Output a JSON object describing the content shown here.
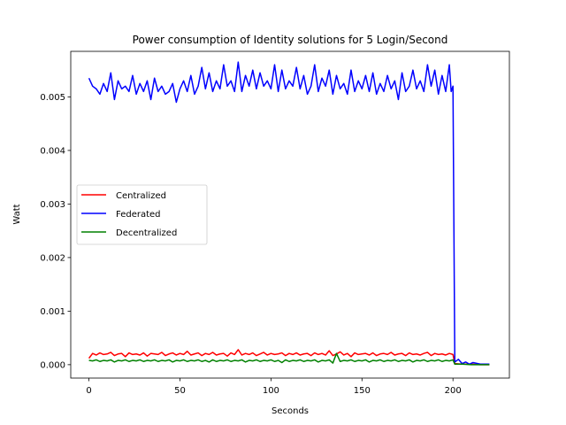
{
  "chart_data": {
    "type": "line",
    "title": "Power consumption of Identity solutions for 5 Login/Second",
    "xlabel": "Seconds",
    "ylabel": "Watt",
    "xlim": [
      -10,
      231
    ],
    "ylim": [
      -0.00025,
      0.00585
    ],
    "xticks": [
      0,
      50,
      100,
      150,
      200
    ],
    "xtick_labels": [
      "0",
      "50",
      "100",
      "150",
      "200"
    ],
    "yticks": [
      0,
      0.001,
      0.002,
      0.003,
      0.004,
      0.005
    ],
    "ytick_labels": [
      "0.000",
      "0.001",
      "0.002",
      "0.003",
      "0.004",
      "0.005"
    ],
    "grid": false,
    "legend_position": "center-left",
    "series": [
      {
        "name": "Centralized",
        "color": "#ff0000",
        "x": [
          0,
          2,
          4,
          6,
          8,
          10,
          12,
          14,
          16,
          18,
          20,
          22,
          24,
          26,
          28,
          30,
          32,
          34,
          36,
          38,
          40,
          42,
          44,
          46,
          48,
          50,
          52,
          54,
          56,
          58,
          60,
          62,
          64,
          66,
          68,
          70,
          72,
          74,
          76,
          78,
          80,
          82,
          84,
          86,
          88,
          90,
          92,
          94,
          96,
          98,
          100,
          102,
          104,
          106,
          108,
          110,
          112,
          114,
          116,
          118,
          120,
          122,
          124,
          126,
          128,
          130,
          132,
          134,
          136,
          138,
          140,
          142,
          144,
          146,
          148,
          150,
          152,
          154,
          156,
          158,
          160,
          162,
          164,
          166,
          168,
          170,
          172,
          174,
          176,
          178,
          180,
          182,
          184,
          186,
          188,
          190,
          192,
          194,
          196,
          198,
          200,
          201,
          205,
          210,
          215,
          220
        ],
        "y": [
          0.00012,
          0.00021,
          0.00018,
          0.00022,
          0.00019,
          0.0002,
          0.00023,
          0.00017,
          0.0002,
          0.00021,
          0.00015,
          0.00022,
          0.00019,
          0.0002,
          0.00018,
          0.00022,
          0.00016,
          0.00021,
          0.0002,
          0.00019,
          0.00023,
          0.00017,
          0.0002,
          0.00022,
          0.00018,
          0.00021,
          0.00019,
          0.00025,
          0.00018,
          0.0002,
          0.00022,
          0.00017,
          0.00021,
          0.00019,
          0.00023,
          0.00018,
          0.0002,
          0.00021,
          0.00016,
          0.00022,
          0.00019,
          0.00028,
          0.00018,
          0.00021,
          0.00019,
          0.00022,
          0.00017,
          0.0002,
          0.00023,
          0.00018,
          0.00021,
          0.00019,
          0.0002,
          0.00022,
          0.00017,
          0.00021,
          0.00019,
          0.00022,
          0.00018,
          0.0002,
          0.00021,
          0.00017,
          0.00022,
          0.00019,
          0.00021,
          0.00018,
          0.00026,
          0.00017,
          0.0002,
          0.00024,
          0.00018,
          0.00021,
          0.00015,
          0.00022,
          0.00019,
          0.0002,
          0.00021,
          0.00018,
          0.00022,
          0.00017,
          0.0002,
          0.00021,
          0.00019,
          0.00023,
          0.00018,
          0.0002,
          0.00021,
          0.00017,
          0.00022,
          0.00019,
          0.0002,
          0.00018,
          0.00021,
          0.00023,
          0.00017,
          0.00021,
          0.00019,
          0.0002,
          0.00018,
          0.00021,
          0.00019,
          2e-05,
          1e-05,
          1e-05,
          0,
          0
        ]
      },
      {
        "name": "Federated",
        "color": "#0000ff",
        "x": [
          0,
          2,
          4,
          6,
          8,
          10,
          12,
          14,
          16,
          18,
          20,
          22,
          24,
          26,
          28,
          30,
          32,
          34,
          36,
          38,
          40,
          42,
          44,
          46,
          48,
          50,
          52,
          54,
          56,
          58,
          60,
          62,
          64,
          66,
          68,
          70,
          72,
          74,
          76,
          78,
          80,
          82,
          84,
          86,
          88,
          90,
          92,
          94,
          96,
          98,
          100,
          102,
          104,
          106,
          108,
          110,
          112,
          114,
          116,
          118,
          120,
          122,
          124,
          126,
          128,
          130,
          132,
          134,
          136,
          138,
          140,
          142,
          144,
          146,
          148,
          150,
          152,
          154,
          156,
          158,
          160,
          162,
          164,
          166,
          168,
          170,
          172,
          174,
          176,
          178,
          180,
          182,
          184,
          186,
          188,
          190,
          192,
          194,
          196,
          198,
          199,
          200,
          201,
          203,
          205,
          207,
          209,
          211,
          215,
          220
        ],
        "y": [
          0.00535,
          0.0052,
          0.00515,
          0.00505,
          0.00525,
          0.0051,
          0.00545,
          0.00495,
          0.0053,
          0.00515,
          0.0052,
          0.0051,
          0.0054,
          0.00505,
          0.00525,
          0.0051,
          0.0053,
          0.00495,
          0.00535,
          0.0051,
          0.0052,
          0.00505,
          0.0051,
          0.00525,
          0.0049,
          0.00515,
          0.0053,
          0.0051,
          0.0054,
          0.00505,
          0.0052,
          0.00555,
          0.00515,
          0.00545,
          0.0051,
          0.0053,
          0.00515,
          0.0056,
          0.0052,
          0.0053,
          0.0051,
          0.00565,
          0.0051,
          0.0054,
          0.0052,
          0.0055,
          0.00515,
          0.00545,
          0.0052,
          0.0053,
          0.00515,
          0.0056,
          0.0051,
          0.0055,
          0.00515,
          0.0053,
          0.0052,
          0.00555,
          0.00515,
          0.0054,
          0.00505,
          0.0052,
          0.0056,
          0.0051,
          0.00535,
          0.0052,
          0.0055,
          0.00505,
          0.0054,
          0.00515,
          0.00525,
          0.00505,
          0.0055,
          0.0051,
          0.0053,
          0.00515,
          0.0054,
          0.0051,
          0.00545,
          0.00505,
          0.00525,
          0.0051,
          0.0054,
          0.00515,
          0.0053,
          0.00495,
          0.00545,
          0.0051,
          0.0052,
          0.0055,
          0.00515,
          0.0053,
          0.0051,
          0.0056,
          0.0052,
          0.0055,
          0.00505,
          0.0054,
          0.0051,
          0.0056,
          0.0051,
          0.0052,
          5e-05,
          0.0001,
          2e-05,
          5e-05,
          1e-05,
          4e-05,
          1e-05,
          1e-05
        ]
      },
      {
        "name": "Decentralized",
        "color": "#008000",
        "x": [
          0,
          2,
          4,
          6,
          8,
          10,
          12,
          14,
          16,
          18,
          20,
          22,
          24,
          26,
          28,
          30,
          32,
          34,
          36,
          38,
          40,
          42,
          44,
          46,
          48,
          50,
          52,
          54,
          56,
          58,
          60,
          62,
          64,
          66,
          68,
          70,
          72,
          74,
          76,
          78,
          80,
          82,
          84,
          86,
          88,
          90,
          92,
          94,
          96,
          98,
          100,
          102,
          104,
          106,
          108,
          110,
          112,
          114,
          116,
          118,
          120,
          122,
          124,
          126,
          128,
          130,
          132,
          134,
          136,
          138,
          140,
          142,
          144,
          146,
          148,
          150,
          152,
          154,
          156,
          158,
          160,
          162,
          164,
          166,
          168,
          170,
          172,
          174,
          176,
          178,
          180,
          182,
          184,
          186,
          188,
          190,
          192,
          194,
          196,
          198,
          200,
          201,
          205,
          210,
          215,
          220
        ],
        "y": [
          8e-05,
          7e-05,
          9e-05,
          6e-05,
          8e-05,
          7e-05,
          9e-05,
          5e-05,
          8e-05,
          7e-05,
          9e-05,
          6e-05,
          8e-05,
          7e-05,
          9e-05,
          6e-05,
          8e-05,
          7e-05,
          9e-05,
          6e-05,
          8e-05,
          7e-05,
          9e-05,
          5e-05,
          8e-05,
          7e-05,
          9e-05,
          6e-05,
          8e-05,
          7e-05,
          9e-05,
          6e-05,
          8e-05,
          5e-05,
          9e-05,
          6e-05,
          8e-05,
          7e-05,
          9e-05,
          6e-05,
          8e-05,
          7e-05,
          9e-05,
          5e-05,
          8e-05,
          7e-05,
          9e-05,
          6e-05,
          8e-05,
          7e-05,
          9e-05,
          6e-05,
          8e-05,
          4e-05,
          9e-05,
          6e-05,
          8e-05,
          7e-05,
          9e-05,
          6e-05,
          8e-05,
          7e-05,
          9e-05,
          5e-05,
          8e-05,
          7e-05,
          9e-05,
          3e-05,
          0.00021,
          6e-05,
          8e-05,
          7e-05,
          9e-05,
          6e-05,
          8e-05,
          7e-05,
          9e-05,
          5e-05,
          8e-05,
          7e-05,
          9e-05,
          6e-05,
          8e-05,
          7e-05,
          9e-05,
          6e-05,
          8e-05,
          7e-05,
          9e-05,
          5e-05,
          8e-05,
          7e-05,
          9e-05,
          6e-05,
          8e-05,
          7e-05,
          9e-05,
          6e-05,
          8e-05,
          7e-05,
          9e-05,
          1e-05,
          1e-05,
          0,
          0,
          0
        ]
      }
    ]
  }
}
